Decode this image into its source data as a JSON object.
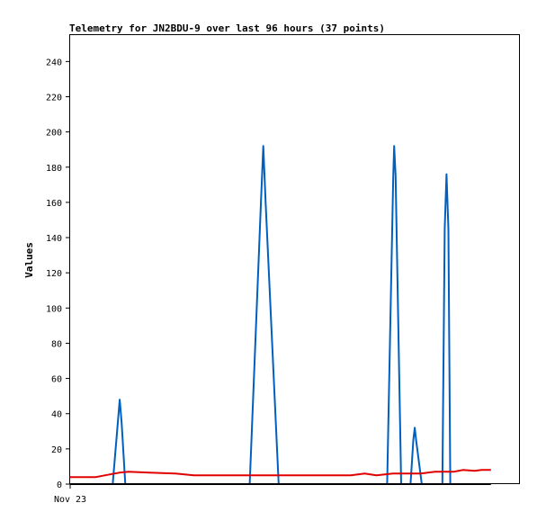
{
  "chart_data": {
    "type": "line",
    "title": "Telemetry for JN2BDU-9 over last 96 hours (37 points)",
    "xlabel": "",
    "ylabel": "Values",
    "xlim": [
      0,
      96
    ],
    "ylim": [
      0,
      255
    ],
    "yticks": [
      0,
      20,
      40,
      60,
      80,
      100,
      120,
      140,
      160,
      180,
      200,
      220,
      240
    ],
    "xtick_labels": [
      {
        "x": 0,
        "label": "Nov 23"
      }
    ],
    "grid": false,
    "legend": "none",
    "series": [
      {
        "color": "#0060c0",
        "points": [
          [
            9.1,
            0
          ],
          [
            10.2,
            35
          ],
          [
            10.6,
            48
          ],
          [
            11.0,
            35
          ],
          [
            11.8,
            0
          ],
          [
            38.4,
            0
          ],
          [
            40.8,
            160
          ],
          [
            41.3,
            192
          ],
          [
            41.8,
            160
          ],
          [
            44.6,
            0
          ],
          [
            67.8,
            0
          ],
          [
            69.1,
            175
          ],
          [
            69.3,
            192
          ],
          [
            69.6,
            175
          ],
          [
            70.8,
            0
          ],
          [
            72.8,
            0
          ],
          [
            73.4,
            25
          ],
          [
            73.7,
            32
          ],
          [
            74.0,
            25
          ],
          [
            75.2,
            0
          ],
          [
            79.6,
            0
          ],
          [
            80.1,
            145
          ],
          [
            80.5,
            176
          ],
          [
            80.9,
            145
          ],
          [
            81.3,
            0
          ]
        ]
      },
      {
        "color": "#e00000",
        "points": [
          [
            0,
            4
          ],
          [
            5.5,
            4
          ],
          [
            7.5,
            5
          ],
          [
            10.5,
            6.5
          ],
          [
            12.5,
            7
          ],
          [
            17,
            6.5
          ],
          [
            22.5,
            6
          ],
          [
            26.5,
            5
          ],
          [
            36,
            5
          ],
          [
            46,
            5
          ],
          [
            60,
            5
          ],
          [
            63,
            6
          ],
          [
            65.5,
            5
          ],
          [
            69,
            6
          ],
          [
            75,
            6
          ],
          [
            78,
            7
          ],
          [
            82,
            7
          ],
          [
            84,
            8
          ],
          [
            86.5,
            7.5
          ],
          [
            88,
            8
          ],
          [
            90,
            8
          ]
        ]
      },
      {
        "color": "#000000",
        "points": [
          [
            0,
            0
          ],
          [
            90,
            0
          ]
        ]
      }
    ]
  }
}
